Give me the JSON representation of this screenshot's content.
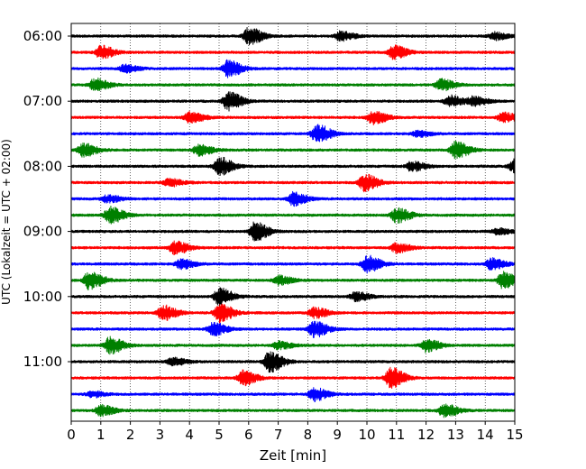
{
  "chart_data": {
    "type": "line",
    "title": "",
    "xlabel": "Zeit  [min]",
    "ylabel": "UTC (Lokalzeit = UTC + 02:00)",
    "xlim": [
      0,
      15
    ],
    "x_ticks": [
      "0",
      "1",
      "2",
      "3",
      "4",
      "5",
      "6",
      "7",
      "8",
      "9",
      "10",
      "11",
      "12",
      "13",
      "14",
      "15"
    ],
    "y_ticks": [
      "06:00",
      "07:00",
      "08:00",
      "09:00",
      "10:00",
      "11:00"
    ],
    "grid": "vertical dotted at each minute",
    "trace_interval_minutes": 15,
    "start_time_utc": "06:00",
    "colors": [
      "#000000",
      "#ff0000",
      "#0000ff",
      "#008000"
    ],
    "series": [
      {
        "start": "06:00",
        "color": "#000000",
        "events": [
          [
            6.0,
            9
          ],
          [
            9.1,
            5
          ],
          [
            14.3,
            4
          ]
        ]
      },
      {
        "start": "06:15",
        "color": "#ff0000",
        "events": [
          [
            1.0,
            7
          ],
          [
            10.9,
            7
          ]
        ]
      },
      {
        "start": "06:30",
        "color": "#0000ff",
        "events": [
          [
            1.8,
            4
          ],
          [
            5.3,
            9
          ]
        ]
      },
      {
        "start": "06:45",
        "color": "#008000",
        "events": [
          [
            0.8,
            7
          ],
          [
            12.5,
            6
          ]
        ]
      },
      {
        "start": "07:00",
        "color": "#000000",
        "events": [
          [
            5.3,
            10
          ],
          [
            12.8,
            6
          ],
          [
            13.6,
            5
          ]
        ]
      },
      {
        "start": "07:15",
        "color": "#ff0000",
        "events": [
          [
            4.0,
            6
          ],
          [
            10.2,
            7
          ],
          [
            14.6,
            5
          ]
        ]
      },
      {
        "start": "07:30",
        "color": "#0000ff",
        "events": [
          [
            8.3,
            10
          ],
          [
            11.7,
            3
          ]
        ]
      },
      {
        "start": "07:45",
        "color": "#008000",
        "events": [
          [
            0.4,
            7
          ],
          [
            4.3,
            6
          ],
          [
            13.0,
            9
          ]
        ]
      },
      {
        "start": "08:00",
        "color": "#000000",
        "events": [
          [
            5.0,
            10
          ],
          [
            11.5,
            5
          ],
          [
            15.0,
            9
          ]
        ]
      },
      {
        "start": "08:15",
        "color": "#ff0000",
        "events": [
          [
            3.3,
            4
          ],
          [
            9.9,
            9
          ]
        ]
      },
      {
        "start": "08:30",
        "color": "#0000ff",
        "events": [
          [
            1.2,
            4
          ],
          [
            7.5,
            7
          ]
        ]
      },
      {
        "start": "08:45",
        "color": "#008000",
        "events": [
          [
            1.3,
            9
          ],
          [
            11.0,
            8
          ]
        ]
      },
      {
        "start": "09:00",
        "color": "#000000",
        "events": [
          [
            6.2,
            10
          ],
          [
            14.4,
            3
          ]
        ]
      },
      {
        "start": "09:15",
        "color": "#ff0000",
        "events": [
          [
            3.5,
            7
          ],
          [
            11.0,
            5
          ]
        ]
      },
      {
        "start": "09:30",
        "color": "#0000ff",
        "events": [
          [
            3.7,
            5
          ],
          [
            10.0,
            9
          ],
          [
            14.2,
            6
          ]
        ]
      },
      {
        "start": "09:45",
        "color": "#008000",
        "events": [
          [
            0.6,
            10
          ],
          [
            7.0,
            5
          ],
          [
            14.6,
            9
          ]
        ]
      },
      {
        "start": "10:00",
        "color": "#000000",
        "events": [
          [
            5.0,
            9
          ],
          [
            9.6,
            5
          ]
        ]
      },
      {
        "start": "10:15",
        "color": "#ff0000",
        "events": [
          [
            3.1,
            8
          ],
          [
            5.0,
            10
          ],
          [
            8.2,
            6
          ]
        ]
      },
      {
        "start": "10:30",
        "color": "#0000ff",
        "events": [
          [
            4.8,
            7
          ],
          [
            8.2,
            9
          ]
        ]
      },
      {
        "start": "10:45",
        "color": "#008000",
        "events": [
          [
            1.3,
            9
          ],
          [
            7.0,
            4
          ],
          [
            12.0,
            7
          ]
        ]
      },
      {
        "start": "11:00",
        "color": "#000000",
        "events": [
          [
            6.7,
            11
          ],
          [
            3.4,
            4
          ]
        ]
      },
      {
        "start": "11:15",
        "color": "#ff0000",
        "events": [
          [
            5.8,
            8
          ],
          [
            10.8,
            11
          ]
        ]
      },
      {
        "start": "11:30",
        "color": "#0000ff",
        "events": [
          [
            8.2,
            7
          ],
          [
            0.7,
            3
          ]
        ]
      },
      {
        "start": "11:45",
        "color": "#008000",
        "events": [
          [
            1.0,
            6
          ],
          [
            12.6,
            7
          ]
        ]
      }
    ]
  }
}
